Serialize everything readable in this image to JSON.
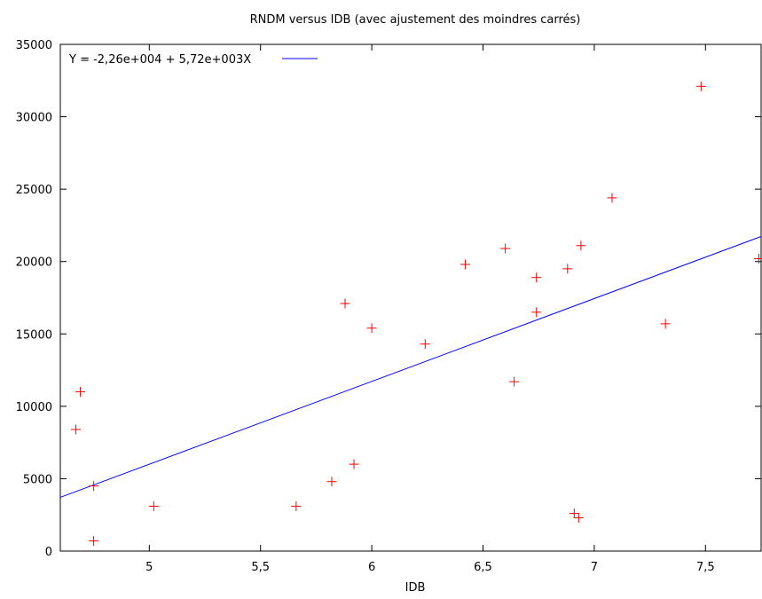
{
  "chart_data": {
    "type": "scatter",
    "title": "RNDM versus IDB (avec ajustement des moindres carrés)",
    "xlabel": "IDB",
    "ylabel": "",
    "xlim": [
      4.6,
      7.75
    ],
    "ylim": [
      0,
      35000
    ],
    "grid": false,
    "legend_position": "top-left",
    "x_ticks": [
      {
        "value": 5,
        "label": "5"
      },
      {
        "value": 5.5,
        "label": "5,5"
      },
      {
        "value": 6,
        "label": "6"
      },
      {
        "value": 6.5,
        "label": "6,5"
      },
      {
        "value": 7,
        "label": "7"
      },
      {
        "value": 7.5,
        "label": "7,5"
      }
    ],
    "y_ticks": [
      {
        "value": 0,
        "label": "0"
      },
      {
        "value": 5000,
        "label": "5000"
      },
      {
        "value": 10000,
        "label": "10000"
      },
      {
        "value": 15000,
        "label": "15000"
      },
      {
        "value": 20000,
        "label": "20000"
      },
      {
        "value": 25000,
        "label": "25000"
      },
      {
        "value": 30000,
        "label": "30000"
      },
      {
        "value": 35000,
        "label": "35000"
      }
    ],
    "series": [
      {
        "kind": "points",
        "color": "#ff0000",
        "points": [
          {
            "x": 4.67,
            "y": 8400
          },
          {
            "x": 4.69,
            "y": 11000
          },
          {
            "x": 4.75,
            "y": 4500
          },
          {
            "x": 4.75,
            "y": 700
          },
          {
            "x": 5.02,
            "y": 3100
          },
          {
            "x": 5.66,
            "y": 3100
          },
          {
            "x": 5.82,
            "y": 4800
          },
          {
            "x": 5.88,
            "y": 17100
          },
          {
            "x": 5.92,
            "y": 6000
          },
          {
            "x": 6.0,
            "y": 15400
          },
          {
            "x": 6.24,
            "y": 14300
          },
          {
            "x": 6.42,
            "y": 19800
          },
          {
            "x": 6.6,
            "y": 20900
          },
          {
            "x": 6.64,
            "y": 11700
          },
          {
            "x": 6.74,
            "y": 18900
          },
          {
            "x": 6.74,
            "y": 16500
          },
          {
            "x": 6.88,
            "y": 19500
          },
          {
            "x": 6.91,
            "y": 2600
          },
          {
            "x": 6.93,
            "y": 2300
          },
          {
            "x": 6.94,
            "y": 21100
          },
          {
            "x": 7.08,
            "y": 24400
          },
          {
            "x": 7.32,
            "y": 15700
          },
          {
            "x": 7.48,
            "y": 32100
          },
          {
            "x": 7.74,
            "y": 20200
          }
        ]
      },
      {
        "kind": "fit_line",
        "name": "Y = -2,26e+004 + 5,72e+003X",
        "color": "#0000ff",
        "intercept": -22600,
        "slope": 5720
      }
    ]
  }
}
